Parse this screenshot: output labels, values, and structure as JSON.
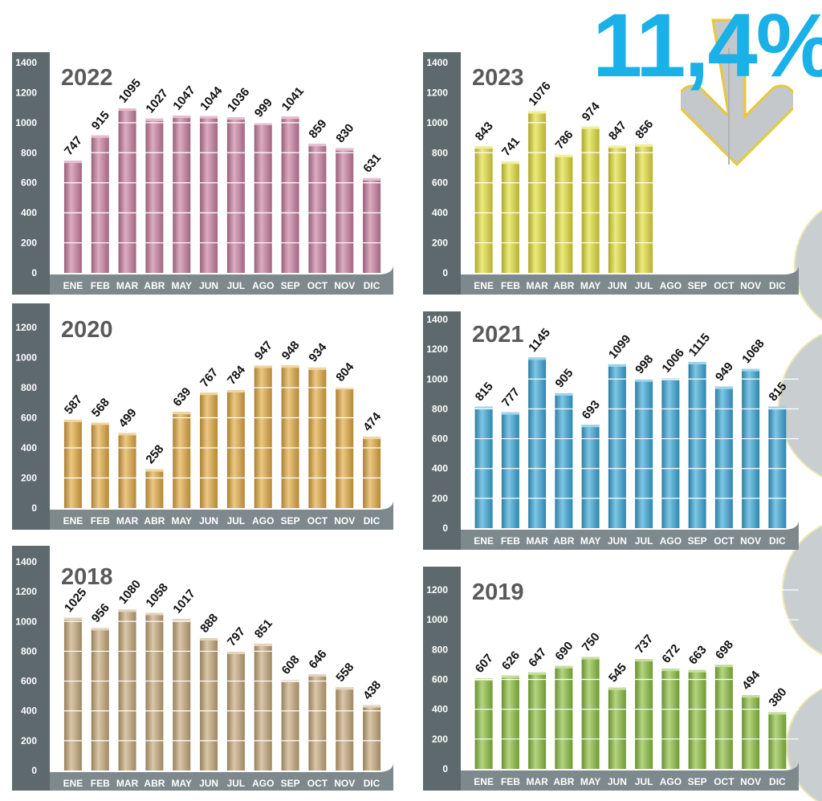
{
  "headline": {
    "text": "11,4%",
    "color": "#1ab0e8",
    "icon": "down-arrow-icon"
  },
  "months": [
    "ENE",
    "FEB",
    "MAR",
    "ABR",
    "MAY",
    "JUN",
    "JUL",
    "AGO",
    "SEP",
    "OCT",
    "NOV",
    "DIC"
  ],
  "chart_data": [
    {
      "type": "bar",
      "title": "2022",
      "color": "#c97fa0",
      "ylim": [
        0,
        1400
      ],
      "yticks": [
        0,
        200,
        400,
        600,
        800,
        1000,
        1200,
        1400
      ],
      "categories": [
        "ENE",
        "FEB",
        "MAR",
        "ABR",
        "MAY",
        "JUN",
        "JUL",
        "AGO",
        "SEP",
        "OCT",
        "NOV",
        "DIC"
      ],
      "values": [
        747,
        915,
        1095,
        1027,
        1047,
        1044,
        1036,
        999,
        1041,
        859,
        830,
        631
      ]
    },
    {
      "type": "bar",
      "title": "2023",
      "color": "#e3df3a",
      "ylim": [
        0,
        1400
      ],
      "yticks": [
        0,
        200,
        400,
        600,
        800,
        1000,
        1200,
        1400
      ],
      "categories": [
        "ENE",
        "FEB",
        "MAR",
        "ABR",
        "MAY",
        "JUN",
        "JUL",
        "AGO",
        "SEP",
        "OCT",
        "NOV",
        "DIC"
      ],
      "values": [
        843,
        741,
        1076,
        786,
        974,
        847,
        856,
        null,
        null,
        null,
        null,
        null
      ]
    },
    {
      "type": "bar",
      "title": "2020",
      "color": "#e1aa42",
      "ylim": [
        0,
        1200
      ],
      "yticks": [
        0,
        200,
        400,
        600,
        800,
        1000,
        1200
      ],
      "categories": [
        "ENE",
        "FEB",
        "MAR",
        "ABR",
        "MAY",
        "JUN",
        "JUL",
        "AGO",
        "SEP",
        "OCT",
        "NOV",
        "DIC"
      ],
      "values": [
        587,
        568,
        499,
        258,
        639,
        767,
        784,
        947,
        948,
        934,
        804,
        474
      ]
    },
    {
      "type": "bar",
      "title": "2021",
      "color": "#3aa8d8",
      "ylim": [
        0,
        1400
      ],
      "yticks": [
        0,
        200,
        400,
        600,
        800,
        1000,
        1200,
        1400
      ],
      "categories": [
        "ENE",
        "FEB",
        "MAR",
        "ABR",
        "MAY",
        "JUN",
        "JUL",
        "AGO",
        "SEP",
        "OCT",
        "NOV",
        "DIC"
      ],
      "values": [
        815,
        777,
        1145,
        905,
        693,
        1099,
        998,
        1006,
        1115,
        949,
        1068,
        815
      ]
    },
    {
      "type": "bar",
      "title": "2018",
      "color": "#c6a97a",
      "ylim": [
        0,
        1400
      ],
      "yticks": [
        0,
        200,
        400,
        600,
        800,
        1000,
        1200,
        1400
      ],
      "categories": [
        "ENE",
        "FEB",
        "MAR",
        "ABR",
        "MAY",
        "JUN",
        "JUL",
        "AGO",
        "SEP",
        "OCT",
        "NOV",
        "DIC"
      ],
      "values": [
        1025,
        956,
        1080,
        1058,
        1017,
        888,
        797,
        851,
        608,
        646,
        558,
        438
      ]
    },
    {
      "type": "bar",
      "title": "2019",
      "color": "#8cbf3e",
      "ylim": [
        0,
        1200
      ],
      "yticks": [
        0,
        200,
        400,
        600,
        800,
        1000,
        1200
      ],
      "categories": [
        "ENE",
        "FEB",
        "MAR",
        "ABR",
        "MAY",
        "JUN",
        "JUL",
        "AGO",
        "SEP",
        "OCT",
        "NOV",
        "DIC"
      ],
      "values": [
        607,
        626,
        647,
        690,
        750,
        545,
        737,
        672,
        663,
        698,
        494,
        380
      ]
    }
  ]
}
